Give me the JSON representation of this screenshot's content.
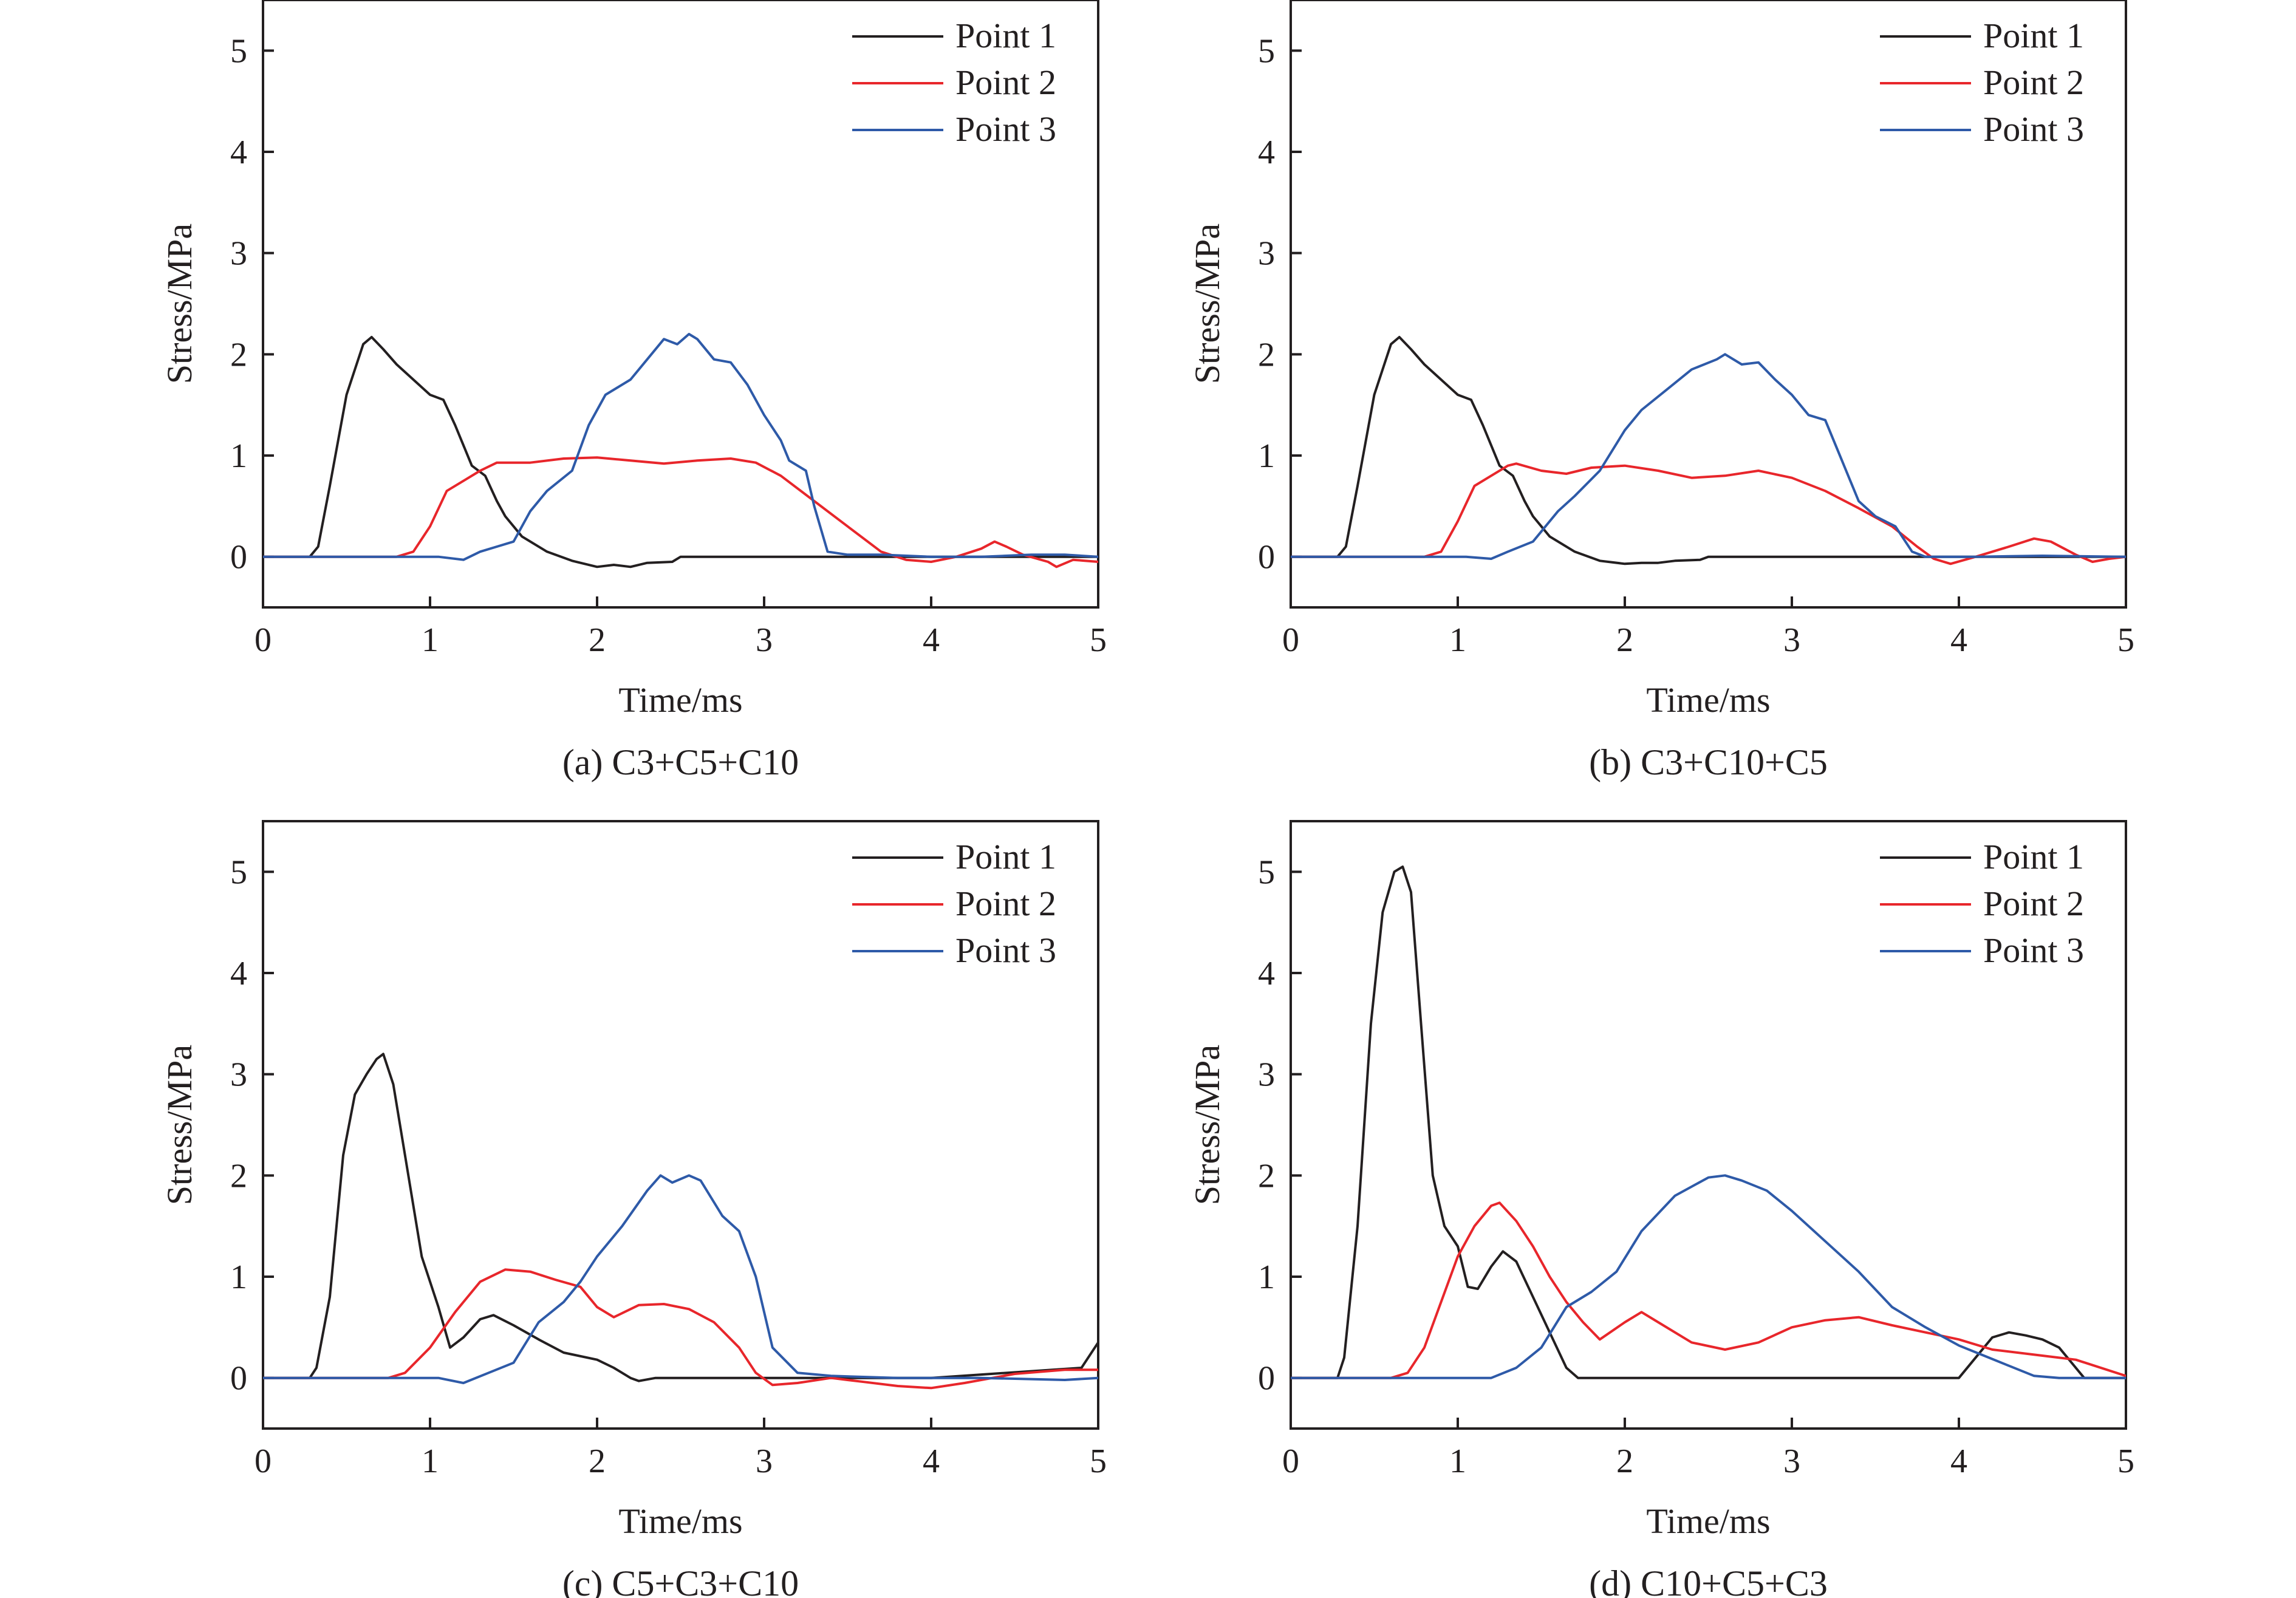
{
  "colors": {
    "point1": "#231f20",
    "point2": "#e8262b",
    "point3": "#2e5aa8"
  },
  "chart_data": [
    {
      "type": "line",
      "caption": "(a) C3+C5+C10",
      "xlabel": "Time/ms",
      "ylabel": "Stress/MPa",
      "xlim": [
        0,
        5
      ],
      "ylim": [
        -0.5,
        5.5
      ],
      "xticks": [
        0,
        1,
        2,
        3,
        4,
        5
      ],
      "yticks": [
        0,
        1,
        2,
        3,
        4,
        5
      ],
      "legend_position": "top-right",
      "series": [
        {
          "name": "Point 1",
          "color_key": "point1",
          "x": [
            0,
            0.28,
            0.33,
            0.4,
            0.5,
            0.6,
            0.65,
            0.72,
            0.8,
            0.9,
            1.0,
            1.08,
            1.15,
            1.25,
            1.33,
            1.4,
            1.45,
            1.55,
            1.7,
            1.85,
            2.0,
            2.1,
            2.2,
            2.3,
            2.45,
            2.5,
            5.0
          ],
          "y": [
            0,
            0,
            0.1,
            0.7,
            1.6,
            2.1,
            2.17,
            2.05,
            1.9,
            1.75,
            1.6,
            1.55,
            1.3,
            0.9,
            0.8,
            0.55,
            0.4,
            0.2,
            0.05,
            -0.04,
            -0.1,
            -0.08,
            -0.1,
            -0.06,
            -0.05,
            0,
            0
          ]
        },
        {
          "name": "Point 2",
          "color_key": "point2",
          "x": [
            0,
            0.8,
            0.9,
            1.0,
            1.1,
            1.2,
            1.3,
            1.4,
            1.6,
            1.8,
            2.0,
            2.2,
            2.4,
            2.6,
            2.8,
            2.95,
            3.1,
            3.3,
            3.5,
            3.7,
            3.85,
            4.0,
            4.15,
            4.3,
            4.38,
            4.45,
            4.55,
            4.7,
            4.75,
            4.85,
            5.0
          ],
          "y": [
            0,
            0,
            0.05,
            0.3,
            0.65,
            0.75,
            0.85,
            0.93,
            0.93,
            0.97,
            0.98,
            0.95,
            0.92,
            0.95,
            0.97,
            0.93,
            0.8,
            0.55,
            0.3,
            0.05,
            -0.03,
            -0.05,
            0,
            0.08,
            0.15,
            0.1,
            0.02,
            -0.05,
            -0.1,
            -0.03,
            -0.05
          ]
        },
        {
          "name": "Point 3",
          "color_key": "point3",
          "x": [
            0,
            1.05,
            1.2,
            1.3,
            1.4,
            1.5,
            1.6,
            1.7,
            1.85,
            1.95,
            2.05,
            2.2,
            2.3,
            2.4,
            2.48,
            2.55,
            2.6,
            2.7,
            2.8,
            2.9,
            3.0,
            3.1,
            3.15,
            3.25,
            3.3,
            3.38,
            3.5,
            3.7,
            4.0,
            4.3,
            4.6,
            4.8,
            5.0
          ],
          "y": [
            0,
            0,
            -0.03,
            0.05,
            0.1,
            0.15,
            0.45,
            0.65,
            0.85,
            1.3,
            1.6,
            1.75,
            1.95,
            2.15,
            2.1,
            2.2,
            2.15,
            1.95,
            1.92,
            1.7,
            1.4,
            1.15,
            0.95,
            0.85,
            0.5,
            0.05,
            0.02,
            0.02,
            0,
            0,
            0.02,
            0.02,
            0
          ]
        }
      ]
    },
    {
      "type": "line",
      "caption": "(b) C3+C10+C5",
      "xlabel": "Time/ms",
      "ylabel": "Stress/MPa",
      "xlim": [
        0,
        5
      ],
      "ylim": [
        -0.5,
        5.5
      ],
      "xticks": [
        0,
        1,
        2,
        3,
        4,
        5
      ],
      "yticks": [
        0,
        1,
        2,
        3,
        4,
        5
      ],
      "legend_position": "top-right",
      "series": [
        {
          "name": "Point 1",
          "color_key": "point1",
          "x": [
            0,
            0.28,
            0.33,
            0.4,
            0.5,
            0.6,
            0.65,
            0.72,
            0.8,
            0.9,
            1.0,
            1.08,
            1.15,
            1.25,
            1.33,
            1.4,
            1.45,
            1.55,
            1.7,
            1.85,
            2.0,
            2.1,
            2.2,
            2.3,
            2.45,
            2.5,
            5.0
          ],
          "y": [
            0,
            0,
            0.1,
            0.7,
            1.6,
            2.1,
            2.17,
            2.05,
            1.9,
            1.75,
            1.6,
            1.55,
            1.3,
            0.9,
            0.8,
            0.55,
            0.4,
            0.2,
            0.05,
            -0.04,
            -0.07,
            -0.06,
            -0.06,
            -0.04,
            -0.03,
            0,
            0
          ]
        },
        {
          "name": "Point 2",
          "color_key": "point2",
          "x": [
            0,
            0.8,
            0.9,
            1.0,
            1.1,
            1.2,
            1.3,
            1.35,
            1.5,
            1.65,
            1.8,
            2.0,
            2.2,
            2.4,
            2.6,
            2.8,
            3.0,
            3.2,
            3.4,
            3.6,
            3.75,
            3.85,
            3.95,
            4.1,
            4.3,
            4.45,
            4.55,
            4.7,
            4.8,
            4.9,
            5.0
          ],
          "y": [
            0,
            0,
            0.05,
            0.35,
            0.7,
            0.8,
            0.9,
            0.92,
            0.85,
            0.82,
            0.88,
            0.9,
            0.85,
            0.78,
            0.8,
            0.85,
            0.78,
            0.65,
            0.48,
            0.3,
            0.1,
            -0.02,
            -0.07,
            0,
            0.1,
            0.18,
            0.15,
            0.02,
            -0.05,
            -0.02,
            0
          ]
        },
        {
          "name": "Point 3",
          "color_key": "point3",
          "x": [
            0,
            1.05,
            1.2,
            1.3,
            1.45,
            1.6,
            1.7,
            1.85,
            2.0,
            2.1,
            2.25,
            2.4,
            2.55,
            2.6,
            2.7,
            2.8,
            2.9,
            3.0,
            3.1,
            3.2,
            3.3,
            3.4,
            3.5,
            3.62,
            3.72,
            3.8,
            3.9,
            4.1,
            4.5,
            5.0
          ],
          "y": [
            0,
            0,
            -0.02,
            0.05,
            0.15,
            0.45,
            0.6,
            0.85,
            1.25,
            1.45,
            1.65,
            1.85,
            1.95,
            2.0,
            1.9,
            1.92,
            1.75,
            1.6,
            1.4,
            1.35,
            0.95,
            0.55,
            0.4,
            0.3,
            0.05,
            0,
            0,
            0,
            0.01,
            0
          ]
        }
      ]
    },
    {
      "type": "line",
      "caption": "(c) C5+C3+C10",
      "xlabel": "Time/ms",
      "ylabel": "Stress/MPa",
      "xlim": [
        0,
        5
      ],
      "ylim": [
        -0.5,
        5.5
      ],
      "xticks": [
        0,
        1,
        2,
        3,
        4,
        5
      ],
      "yticks": [
        0,
        1,
        2,
        3,
        4,
        5
      ],
      "legend_position": "top-right",
      "series": [
        {
          "name": "Point 1",
          "color_key": "point1",
          "x": [
            0,
            0.28,
            0.32,
            0.4,
            0.48,
            0.55,
            0.62,
            0.68,
            0.72,
            0.78,
            0.85,
            0.95,
            1.05,
            1.12,
            1.2,
            1.3,
            1.38,
            1.5,
            1.65,
            1.8,
            2.0,
            2.1,
            2.2,
            2.25,
            2.35,
            2.5,
            3.0,
            4.0,
            4.9,
            5.0
          ],
          "y": [
            0,
            0,
            0.1,
            0.8,
            2.2,
            2.8,
            3.0,
            3.15,
            3.2,
            2.9,
            2.2,
            1.2,
            0.7,
            0.3,
            0.4,
            0.58,
            0.62,
            0.52,
            0.38,
            0.25,
            0.18,
            0.1,
            0,
            -0.03,
            0,
            0,
            0,
            0,
            0.1,
            0.35
          ]
        },
        {
          "name": "Point 2",
          "color_key": "point2",
          "x": [
            0,
            0.75,
            0.85,
            1.0,
            1.15,
            1.3,
            1.45,
            1.6,
            1.75,
            1.9,
            2.0,
            2.1,
            2.25,
            2.4,
            2.55,
            2.7,
            2.85,
            2.95,
            3.05,
            3.2,
            3.4,
            3.6,
            3.8,
            4.0,
            4.2,
            4.5,
            4.8,
            5.0
          ],
          "y": [
            0,
            0,
            0.05,
            0.3,
            0.65,
            0.95,
            1.07,
            1.05,
            0.97,
            0.9,
            0.7,
            0.6,
            0.72,
            0.73,
            0.68,
            0.55,
            0.3,
            0.05,
            -0.07,
            -0.05,
            0,
            -0.04,
            -0.08,
            -0.1,
            -0.05,
            0.04,
            0.08,
            0.08
          ]
        },
        {
          "name": "Point 3",
          "color_key": "point3",
          "x": [
            0,
            1.05,
            1.2,
            1.35,
            1.5,
            1.65,
            1.8,
            1.9,
            2.0,
            2.15,
            2.3,
            2.38,
            2.45,
            2.55,
            2.62,
            2.75,
            2.85,
            2.95,
            3.05,
            3.2,
            3.4,
            3.8,
            4.3,
            4.8,
            5.0
          ],
          "y": [
            0,
            0,
            -0.05,
            0.05,
            0.15,
            0.55,
            0.75,
            0.95,
            1.2,
            1.5,
            1.85,
            2.0,
            1.93,
            2.0,
            1.95,
            1.6,
            1.45,
            1.0,
            0.3,
            0.05,
            0.02,
            0,
            0,
            -0.02,
            0
          ]
        }
      ]
    },
    {
      "type": "line",
      "caption": "(d) C10+C5+C3",
      "xlabel": "Time/ms",
      "ylabel": "Stress/MPa",
      "xlim": [
        0,
        5
      ],
      "ylim": [
        -0.5,
        5.5
      ],
      "xticks": [
        0,
        1,
        2,
        3,
        4,
        5
      ],
      "yticks": [
        0,
        1,
        2,
        3,
        4,
        5
      ],
      "legend_position": "top-right",
      "series": [
        {
          "name": "Point 1",
          "color_key": "point1",
          "x": [
            0,
            0.28,
            0.32,
            0.4,
            0.48,
            0.55,
            0.62,
            0.67,
            0.72,
            0.78,
            0.85,
            0.92,
            1.0,
            1.06,
            1.12,
            1.2,
            1.27,
            1.35,
            1.45,
            1.55,
            1.65,
            1.72,
            1.8,
            2.5,
            4.0,
            4.1,
            4.2,
            4.3,
            4.4,
            4.5,
            4.6,
            4.7,
            4.75,
            5.0
          ],
          "y": [
            0,
            0,
            0.2,
            1.5,
            3.5,
            4.6,
            5.0,
            5.05,
            4.8,
            3.5,
            2.0,
            1.5,
            1.3,
            0.9,
            0.88,
            1.1,
            1.25,
            1.15,
            0.8,
            0.45,
            0.1,
            0,
            0,
            0,
            0,
            0.2,
            0.4,
            0.45,
            0.42,
            0.38,
            0.3,
            0.1,
            0,
            0
          ]
        },
        {
          "name": "Point 2",
          "color_key": "point2",
          "x": [
            0,
            0.6,
            0.7,
            0.8,
            0.9,
            1.0,
            1.1,
            1.2,
            1.25,
            1.35,
            1.45,
            1.55,
            1.65,
            1.75,
            1.85,
            2.0,
            2.1,
            2.2,
            2.4,
            2.6,
            2.8,
            3.0,
            3.2,
            3.4,
            3.6,
            3.8,
            4.0,
            4.2,
            4.5,
            4.7,
            5.0
          ],
          "y": [
            0,
            0,
            0.05,
            0.3,
            0.75,
            1.2,
            1.5,
            1.7,
            1.73,
            1.55,
            1.3,
            1.0,
            0.75,
            0.55,
            0.38,
            0.55,
            0.65,
            0.55,
            0.35,
            0.28,
            0.35,
            0.5,
            0.57,
            0.6,
            0.52,
            0.45,
            0.38,
            0.28,
            0.22,
            0.18,
            0.02
          ]
        },
        {
          "name": "Point 3",
          "color_key": "point3",
          "x": [
            0,
            1.2,
            1.35,
            1.5,
            1.65,
            1.8,
            1.95,
            2.1,
            2.3,
            2.5,
            2.6,
            2.7,
            2.85,
            3.0,
            3.2,
            3.4,
            3.6,
            3.8,
            4.0,
            4.15,
            4.3,
            4.45,
            4.6,
            5.0
          ],
          "y": [
            0,
            0,
            0.1,
            0.3,
            0.7,
            0.85,
            1.05,
            1.45,
            1.8,
            1.98,
            2.0,
            1.95,
            1.85,
            1.65,
            1.35,
            1.05,
            0.7,
            0.5,
            0.32,
            0.22,
            0.12,
            0.02,
            0,
            0
          ]
        }
      ]
    }
  ]
}
